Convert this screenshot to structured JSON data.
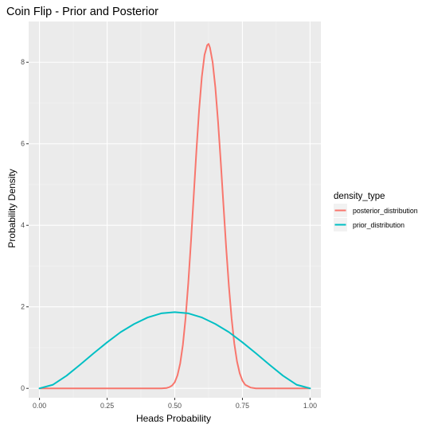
{
  "chart_data": {
    "type": "line",
    "title": "Coin Flip - Prior and Posterior",
    "xlabel": "Heads Probability",
    "ylabel": "Probability Density",
    "xlim": [
      -0.04,
      1.04
    ],
    "ylim": [
      -0.23,
      9.0
    ],
    "x_ticks": [
      0.0,
      0.25,
      0.5,
      0.75,
      1.0
    ],
    "x_tick_labels": [
      "0.00",
      "0.25",
      "0.50",
      "0.75",
      "1.00"
    ],
    "y_ticks": [
      0,
      2,
      4,
      6,
      8
    ],
    "y_tick_labels": [
      "0",
      "2",
      "4",
      "6",
      "8"
    ],
    "grid": true,
    "legend": {
      "title": "density_type",
      "position": "right",
      "entries": [
        "posterior_distribution",
        "prior_distribution"
      ]
    },
    "series": [
      {
        "name": "posterior_distribution",
        "color": "#f8766d",
        "x": [
          0.0,
          0.4,
          0.45,
          0.47,
          0.48,
          0.49,
          0.5,
          0.51,
          0.52,
          0.53,
          0.54,
          0.55,
          0.56,
          0.57,
          0.58,
          0.59,
          0.6,
          0.61,
          0.62,
          0.625,
          0.63,
          0.64,
          0.65,
          0.66,
          0.67,
          0.68,
          0.69,
          0.7,
          0.71,
          0.72,
          0.73,
          0.74,
          0.75,
          0.76,
          0.78,
          0.8,
          1.0
        ],
        "y": [
          0.0,
          0.0,
          0.0,
          0.01,
          0.03,
          0.07,
          0.15,
          0.32,
          0.61,
          1.07,
          1.73,
          2.59,
          3.61,
          4.72,
          5.83,
          6.83,
          7.64,
          8.18,
          8.42,
          8.45,
          8.36,
          8.0,
          7.38,
          6.54,
          5.55,
          4.49,
          3.45,
          2.51,
          1.72,
          1.1,
          0.66,
          0.37,
          0.19,
          0.09,
          0.02,
          0.0,
          0.0
        ]
      },
      {
        "name": "prior_distribution",
        "color": "#00bfc4",
        "x": [
          0.0,
          0.05,
          0.1,
          0.15,
          0.2,
          0.25,
          0.3,
          0.35,
          0.4,
          0.45,
          0.5,
          0.55,
          0.6,
          0.65,
          0.7,
          0.75,
          0.8,
          0.85,
          0.9,
          0.95,
          1.0
        ],
        "y": [
          0.0,
          0.09,
          0.31,
          0.58,
          0.86,
          1.13,
          1.38,
          1.58,
          1.74,
          1.84,
          1.87,
          1.84,
          1.74,
          1.58,
          1.38,
          1.13,
          0.86,
          0.58,
          0.31,
          0.09,
          0.0
        ]
      }
    ]
  }
}
